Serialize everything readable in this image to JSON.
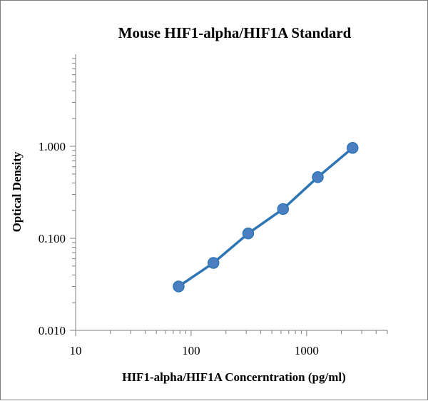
{
  "chart_data": {
    "type": "scatter",
    "title": "Mouse HIF1-alpha/HIF1A Standard",
    "xlabel": "HIF1-alpha/HIF1A Concerntration (pg/ml)",
    "ylabel": "Optical Density",
    "x_scale": "log",
    "y_scale": "log",
    "xlim": [
      10,
      5000
    ],
    "ylim": [
      0.01,
      10
    ],
    "x_tick_labels": [
      "10",
      "100",
      "1000"
    ],
    "y_tick_labels": [
      "0.010",
      "0.100",
      "1.000"
    ],
    "grid": false,
    "legend": "none",
    "series": [
      {
        "x": [
          78,
          156,
          312,
          625,
          1250,
          2500
        ],
        "y": [
          0.03,
          0.054,
          0.113,
          0.208,
          0.462,
          0.96
        ],
        "color": "#2e75b6",
        "marker_color": "#4a7fc1",
        "trendline": true
      }
    ]
  }
}
